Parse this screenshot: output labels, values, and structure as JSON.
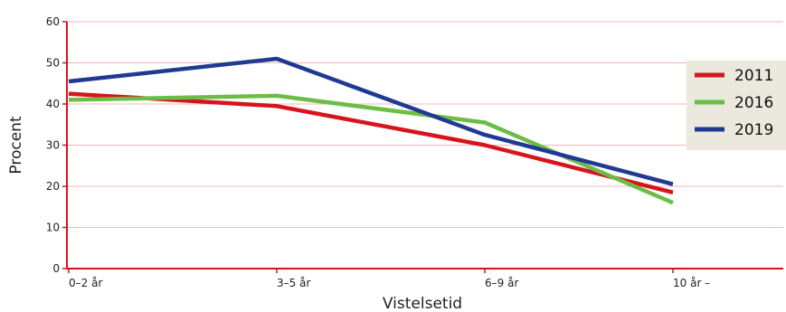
{
  "chart_data": {
    "type": "line",
    "categories": [
      "0–2 år",
      "3–5 år",
      "6–9 år",
      "10 år –"
    ],
    "series": [
      {
        "name": "2011",
        "color": "#d7141d",
        "values": [
          42.5,
          39.5,
          30,
          18.5
        ]
      },
      {
        "name": "2016",
        "color": "#6cbd45",
        "values": [
          41,
          42,
          35.5,
          16
        ]
      },
      {
        "name": "2019",
        "color": "#1f3a93",
        "values": [
          45.5,
          51,
          32.5,
          20.5
        ]
      }
    ],
    "xlabel": "Vistelsetid",
    "ylabel": "Procent",
    "ylim": [
      0,
      60
    ],
    "yticks": [
      "0",
      "10",
      "20",
      "30",
      "40",
      "50",
      "60"
    ],
    "grid": true,
    "legend_position": "right",
    "axis_color": "#d7141d",
    "grid_color": "#f2b8b6",
    "legend_background": "#ebe8de"
  }
}
